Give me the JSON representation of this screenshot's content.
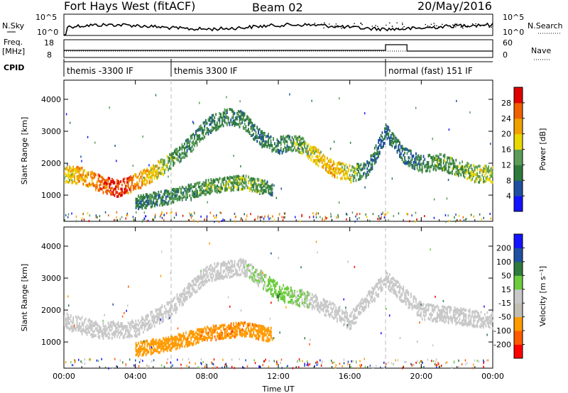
{
  "header": {
    "radar": "Fort Hays West (fitACF)",
    "beam": "Beam 02",
    "date": "20/May/2016"
  },
  "top_panels": {
    "nsky_label": "N.Sky",
    "nsky_ticks": [
      "10^5",
      "10^0"
    ],
    "nsearch_label": "N.Search",
    "nsearch_ticks": [
      "10^5",
      "10^0"
    ],
    "freq_label_1": "Freq.",
    "freq_label_2": "[MHz]",
    "freq_ticks": [
      "18",
      "8"
    ],
    "nave_label": "Nave",
    "nave_ticks": [
      "60",
      "0"
    ],
    "cpid_label": "CPID",
    "cpid_modes": [
      {
        "label": "themis -3300 IF",
        "start_hour": 0
      },
      {
        "label": "themis 3300 IF",
        "start_hour": 6
      },
      {
        "label": "normal (fast) 151 IF",
        "start_hour": 18
      }
    ]
  },
  "colors": {
    "power_scale": [
      "#1414ff",
      "#1f4fa0",
      "#2e7a3c",
      "#5a9c58",
      "#e8d800",
      "#f0a000",
      "#f06000",
      "#e00000"
    ],
    "velocity_scale": [
      "#ff0000",
      "#ff5a00",
      "#ff9a00",
      "#c0bdb2",
      "#c8c8c8",
      "#6ccc3c",
      "#2e7a3c",
      "#1f4fa0",
      "#1414ff"
    ]
  },
  "chart_data": [
    {
      "type": "heatmap",
      "title": "",
      "xlabel": "Time UT",
      "ylabel": "Slant Range [km]",
      "xlim": [
        0,
        24
      ],
      "ylim": [
        180,
        4600
      ],
      "x_ticks": [
        "00:00",
        "04:00",
        "08:00",
        "12:00",
        "16:00",
        "20:00",
        "00:00"
      ],
      "y_ticks": [
        1000,
        2000,
        3000,
        4000
      ],
      "colorbar": {
        "label": "Power [dB]",
        "ticks": [
          "28",
          "24",
          "20",
          "16",
          "12",
          "8",
          "4"
        ],
        "range": [
          0,
          30
        ]
      },
      "echo_regions": [
        {
          "name": "main arc",
          "points": [
            [
              0,
              1700,
              18
            ],
            [
              1,
              1650,
              20
            ],
            [
              2,
              1400,
              24
            ],
            [
              3,
              1250,
              28
            ],
            [
              4,
              1450,
              22
            ],
            [
              5,
              1750,
              18
            ],
            [
              6,
              2100,
              12
            ],
            [
              7,
              2600,
              10
            ],
            [
              8,
              3200,
              9
            ],
            [
              9,
              3500,
              10
            ],
            [
              10,
              3400,
              10
            ],
            [
              11,
              2800,
              8
            ],
            [
              12,
              2600,
              10
            ],
            [
              13,
              2700,
              12
            ],
            [
              14,
              2300,
              18
            ],
            [
              15,
              1900,
              20
            ],
            [
              16,
              1700,
              16
            ],
            [
              17,
              1850,
              8
            ],
            [
              18,
              3000,
              8
            ],
            [
              19,
              2300,
              8
            ],
            [
              20,
              2000,
              10
            ],
            [
              21,
              2100,
              12
            ],
            [
              22,
              1900,
              12
            ],
            [
              23,
              1700,
              16
            ],
            [
              24,
              1700,
              14
            ]
          ]
        },
        {
          "name": "lower band",
          "points": [
            [
              4,
              800,
              8
            ],
            [
              6,
              1000,
              10
            ],
            [
              8,
              1300,
              12
            ],
            [
              10,
              1450,
              14
            ],
            [
              11,
              1300,
              12
            ],
            [
              11.7,
              1250,
              10
            ]
          ]
        }
      ]
    },
    {
      "type": "heatmap",
      "title": "",
      "xlabel": "Time UT",
      "ylabel": "Slant Range [km]",
      "xlim": [
        0,
        24
      ],
      "ylim": [
        180,
        4600
      ],
      "x_ticks": [
        "00:00",
        "04:00",
        "08:00",
        "12:00",
        "16:00",
        "20:00",
        "00:00"
      ],
      "y_ticks": [
        1000,
        2000,
        3000,
        4000
      ],
      "colorbar": {
        "label": "Velocity [m s⁻¹]",
        "ticks": [
          "200",
          "100",
          "50",
          "15",
          "-15",
          "-50",
          "-100",
          "-200"
        ],
        "range": [
          -250,
          250
        ]
      },
      "echo_regions": [
        {
          "name": "main arc",
          "points": [
            [
              0,
              1700,
              0
            ],
            [
              2,
              1400,
              0
            ],
            [
              4,
              1450,
              0
            ],
            [
              6,
              2100,
              0
            ],
            [
              8,
              3200,
              0
            ],
            [
              10,
              3400,
              0
            ],
            [
              12,
              2600,
              40
            ],
            [
              14,
              2300,
              0
            ],
            [
              16,
              1700,
              0
            ],
            [
              18,
              3000,
              0
            ],
            [
              20,
              2000,
              0
            ],
            [
              24,
              1700,
              0
            ]
          ]
        },
        {
          "name": "lower band",
          "points": [
            [
              4,
              800,
              -80
            ],
            [
              6,
              1000,
              -80
            ],
            [
              8,
              1300,
              -90
            ],
            [
              10,
              1450,
              -90
            ],
            [
              11.7,
              1250,
              -80
            ]
          ]
        }
      ]
    }
  ]
}
